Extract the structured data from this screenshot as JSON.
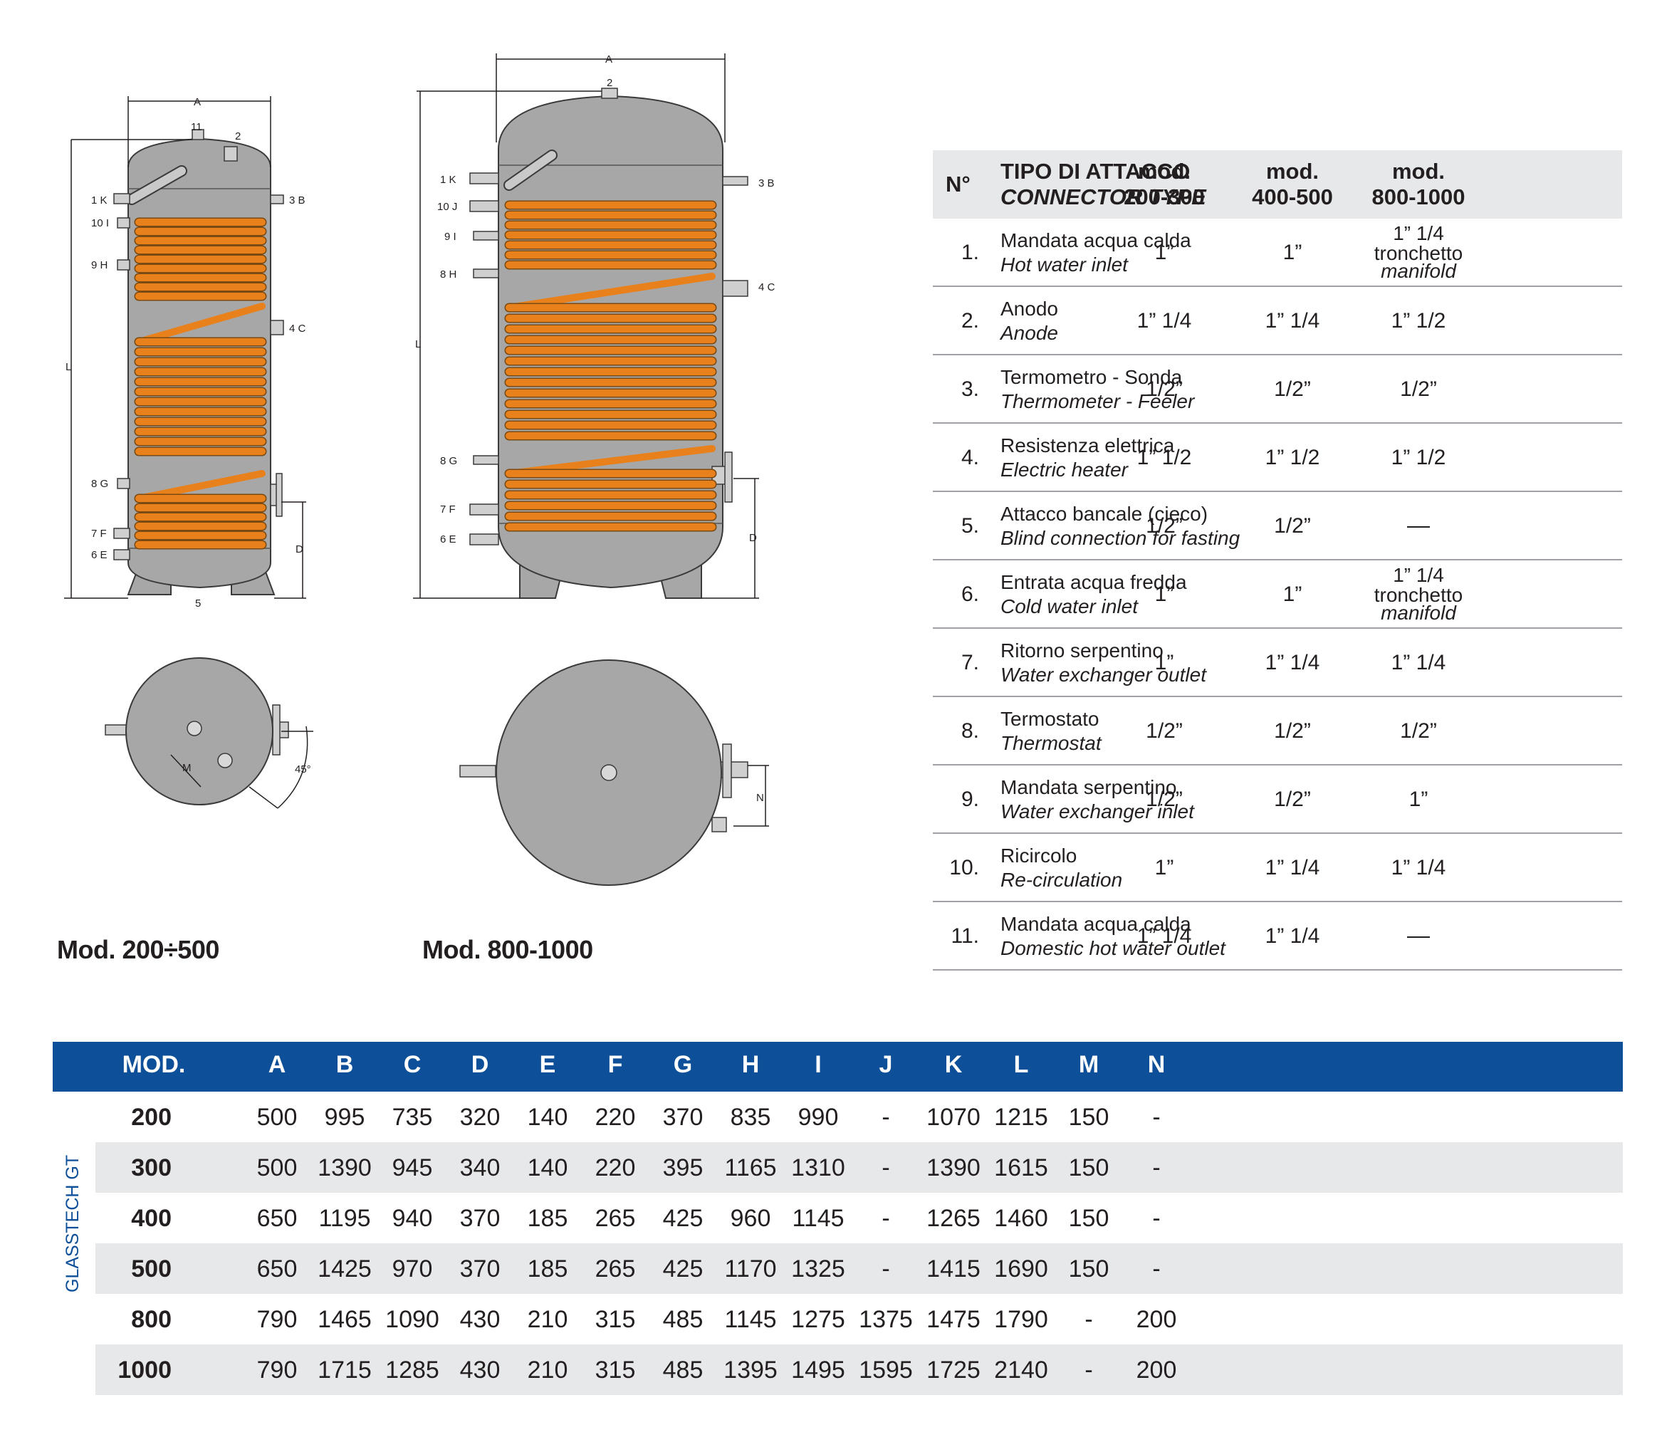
{
  "diagrams": {
    "small": {
      "caption": "Mod. 200÷500",
      "labels": [
        "A",
        "11",
        "2",
        "1 K",
        "3 B",
        "10 I",
        "9 H",
        "4 C",
        "L",
        "8 G",
        "7 F",
        "6 E",
        "D",
        "5",
        "M",
        "45°"
      ]
    },
    "large": {
      "caption": "Mod. 800-1000",
      "labels": [
        "A",
        "2",
        "1 K",
        "3 B",
        "10 J",
        "9 I",
        "8 H",
        "4 C",
        "L",
        "8 G",
        "7 F",
        "6 E",
        "D",
        "N"
      ]
    }
  },
  "connector_table": {
    "col_no": "N°",
    "col_type_it": "TIPO DI ATTACCO",
    "col_type_en": "CONNECTOR TYPE",
    "col_m1": [
      "mod.",
      "200-300"
    ],
    "col_m2": [
      "mod.",
      "400-500"
    ],
    "col_m3": [
      "mod.",
      "800-1000"
    ],
    "rows": [
      {
        "n": "1.",
        "it": "Mandata acqua calda",
        "en": "Hot water inlet",
        "v1": "1”",
        "v2": "1”",
        "v3": "1” 1/4",
        "v3_sub1": "tronchetto",
        "v3_sub2": "manifold"
      },
      {
        "n": "2.",
        "it": "Anodo",
        "en": "Anode",
        "v1": "1” 1/4",
        "v2": "1” 1/4",
        "v3": "1” 1/2"
      },
      {
        "n": "3.",
        "it": "Termometro - Sonda",
        "en": "Thermometer - Feeler",
        "v1": "1/2”",
        "v2": "1/2”",
        "v3": "1/2”"
      },
      {
        "n": "4.",
        "it": "Resistenza elettrica",
        "en": "Electric heater",
        "v1": "1” 1/2",
        "v2": "1” 1/2",
        "v3": "1” 1/2"
      },
      {
        "n": "5.",
        "it": "Attacco bancale (cieco)",
        "en": "Blind connection for fasting",
        "v1": "1/2”",
        "v2": "1/2”",
        "v3": "—"
      },
      {
        "n": "6.",
        "it": "Entrata acqua fredda",
        "en": "Cold water inlet",
        "v1": "1”",
        "v2": "1”",
        "v3": "1” 1/4",
        "v3_sub1": "tronchetto",
        "v3_sub2": "manifold"
      },
      {
        "n": "7.",
        "it": "Ritorno serpentino",
        "en": "Water exchanger outlet",
        "v1": "1”",
        "v2": "1” 1/4",
        "v3": "1” 1/4"
      },
      {
        "n": "8.",
        "it": "Termostato",
        "en": "Thermostat",
        "v1": "1/2”",
        "v2": "1/2”",
        "v3": "1/2”"
      },
      {
        "n": "9.",
        "it": "Mandata serpentino",
        "en": "Water exchanger inlet",
        "v1": "1/2”",
        "v2": "1/2”",
        "v3": "1”"
      },
      {
        "n": "10.",
        "it": "Ricircolo",
        "en": "Re-circulation",
        "v1": "1”",
        "v2": "1” 1/4",
        "v3": "1” 1/4"
      },
      {
        "n": "11.",
        "it": "Mandata acqua calda",
        "en": "Domestic hot water outlet",
        "v1": "1” 1/4",
        "v2": "1” 1/4",
        "v3": "—"
      }
    ]
  },
  "dimension_table": {
    "side_label": "GLASSTECH GT",
    "headers": [
      "MOD.",
      "A",
      "B",
      "C",
      "D",
      "E",
      "F",
      "G",
      "H",
      "I",
      "J",
      "K",
      "L",
      "M",
      "N"
    ],
    "rows": [
      [
        "200",
        "500",
        "995",
        "735",
        "320",
        "140",
        "220",
        "370",
        "835",
        "990",
        "-",
        "1070",
        "1215",
        "150",
        "-"
      ],
      [
        "300",
        "500",
        "1390",
        "945",
        "340",
        "140",
        "220",
        "395",
        "1165",
        "1310",
        "-",
        "1390",
        "1615",
        "150",
        "-"
      ],
      [
        "400",
        "650",
        "1195",
        "940",
        "370",
        "185",
        "265",
        "425",
        "960",
        "1145",
        "-",
        "1265",
        "1460",
        "150",
        "-"
      ],
      [
        "500",
        "650",
        "1425",
        "970",
        "370",
        "185",
        "265",
        "425",
        "1170",
        "1325",
        "-",
        "1415",
        "1690",
        "150",
        "-"
      ],
      [
        "800",
        "790",
        "1465",
        "1090",
        "430",
        "210",
        "315",
        "485",
        "1145",
        "1275",
        "1375",
        "1475",
        "1790",
        "-",
        "200"
      ],
      [
        "1000",
        "790",
        "1715",
        "1285",
        "430",
        "210",
        "315",
        "485",
        "1395",
        "1495",
        "1595",
        "1725",
        "2140",
        "-",
        "200"
      ]
    ]
  },
  "colors": {
    "header_blue": "#0d4f98",
    "coil_orange": "#e8811c",
    "tank_gray": "#a6a6a6",
    "row_gray": "#e7e8ea"
  }
}
